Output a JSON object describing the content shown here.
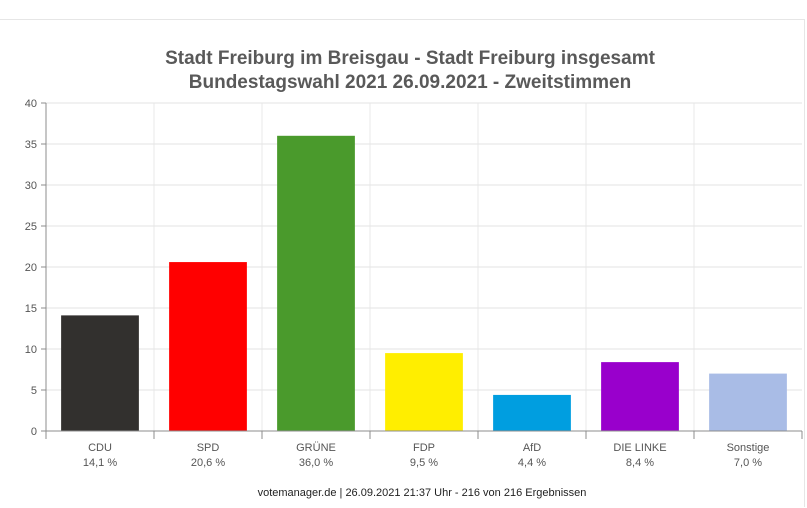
{
  "chart_data": {
    "type": "bar",
    "title": "Stadt Freiburg im Breisgau - Stadt Freiburg insgesamt",
    "subtitle": "Bundestagswahl 2021 26.09.2021  - Zweitstimmen",
    "categories": [
      "CDU",
      "SPD",
      "GRÜNE",
      "FDP",
      "AfD",
      "DIE LINKE",
      "Sonstige"
    ],
    "value_labels": [
      "14,1 %",
      "20,6 %",
      "36,0 %",
      "9,5 %",
      "4,4 %",
      "8,4 %",
      "7,0 %"
    ],
    "values": [
      14.1,
      20.6,
      36.0,
      9.5,
      4.4,
      8.4,
      7.0
    ],
    "colors": [
      "#32302e",
      "#ff0000",
      "#4a9a2c",
      "#ffee00",
      "#009ee0",
      "#9900cc",
      "#a9bce6"
    ],
    "ylim": [
      0,
      40
    ],
    "yticks": [
      0,
      5,
      10,
      15,
      20,
      25,
      30,
      35,
      40
    ],
    "grid": true,
    "legend": "none"
  },
  "footer": "votemanager.de | 26.09.2021 21:37 Uhr - 216 von 216 Ergebnissen"
}
